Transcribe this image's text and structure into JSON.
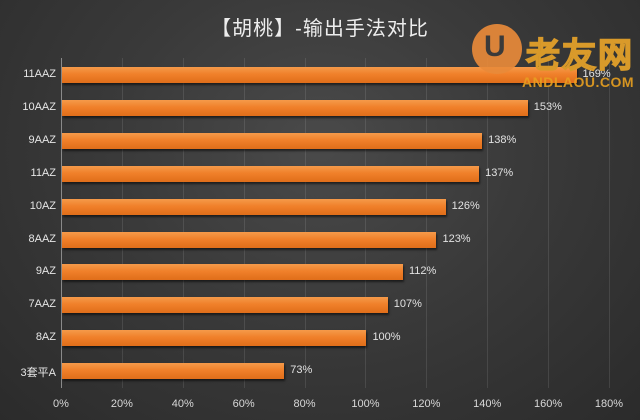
{
  "chart_data": {
    "type": "bar",
    "orientation": "horizontal",
    "title": "【胡桃】-输出手法对比",
    "xlabel": "",
    "ylabel": "",
    "categories": [
      "11AAZ",
      "10AAZ",
      "9AAZ",
      "11AZ",
      "10AZ",
      "8AAZ",
      "9AZ",
      "7AAZ",
      "8AZ",
      "3套平A"
    ],
    "values": [
      169,
      153,
      138,
      137,
      126,
      123,
      112,
      107,
      100,
      73
    ],
    "value_labels": [
      "169%",
      "153%",
      "138%",
      "137%",
      "126%",
      "123%",
      "112%",
      "107%",
      "100%",
      "73%"
    ],
    "xlim": [
      0,
      180
    ],
    "xticks": [
      "0%",
      "20%",
      "40%",
      "60%",
      "80%",
      "100%",
      "120%",
      "140%",
      "160%",
      "180%"
    ],
    "grid": true,
    "legend": null,
    "bar_color": "#f0802a"
  },
  "title": "【胡桃】-输出手法对比",
  "watermark": {
    "glyph": "U",
    "text": "老友网",
    "url": "ANDLAOU.COM"
  },
  "colors": {
    "background": "#353535",
    "bar": "#f0802a",
    "text": "#e6e6e6"
  }
}
